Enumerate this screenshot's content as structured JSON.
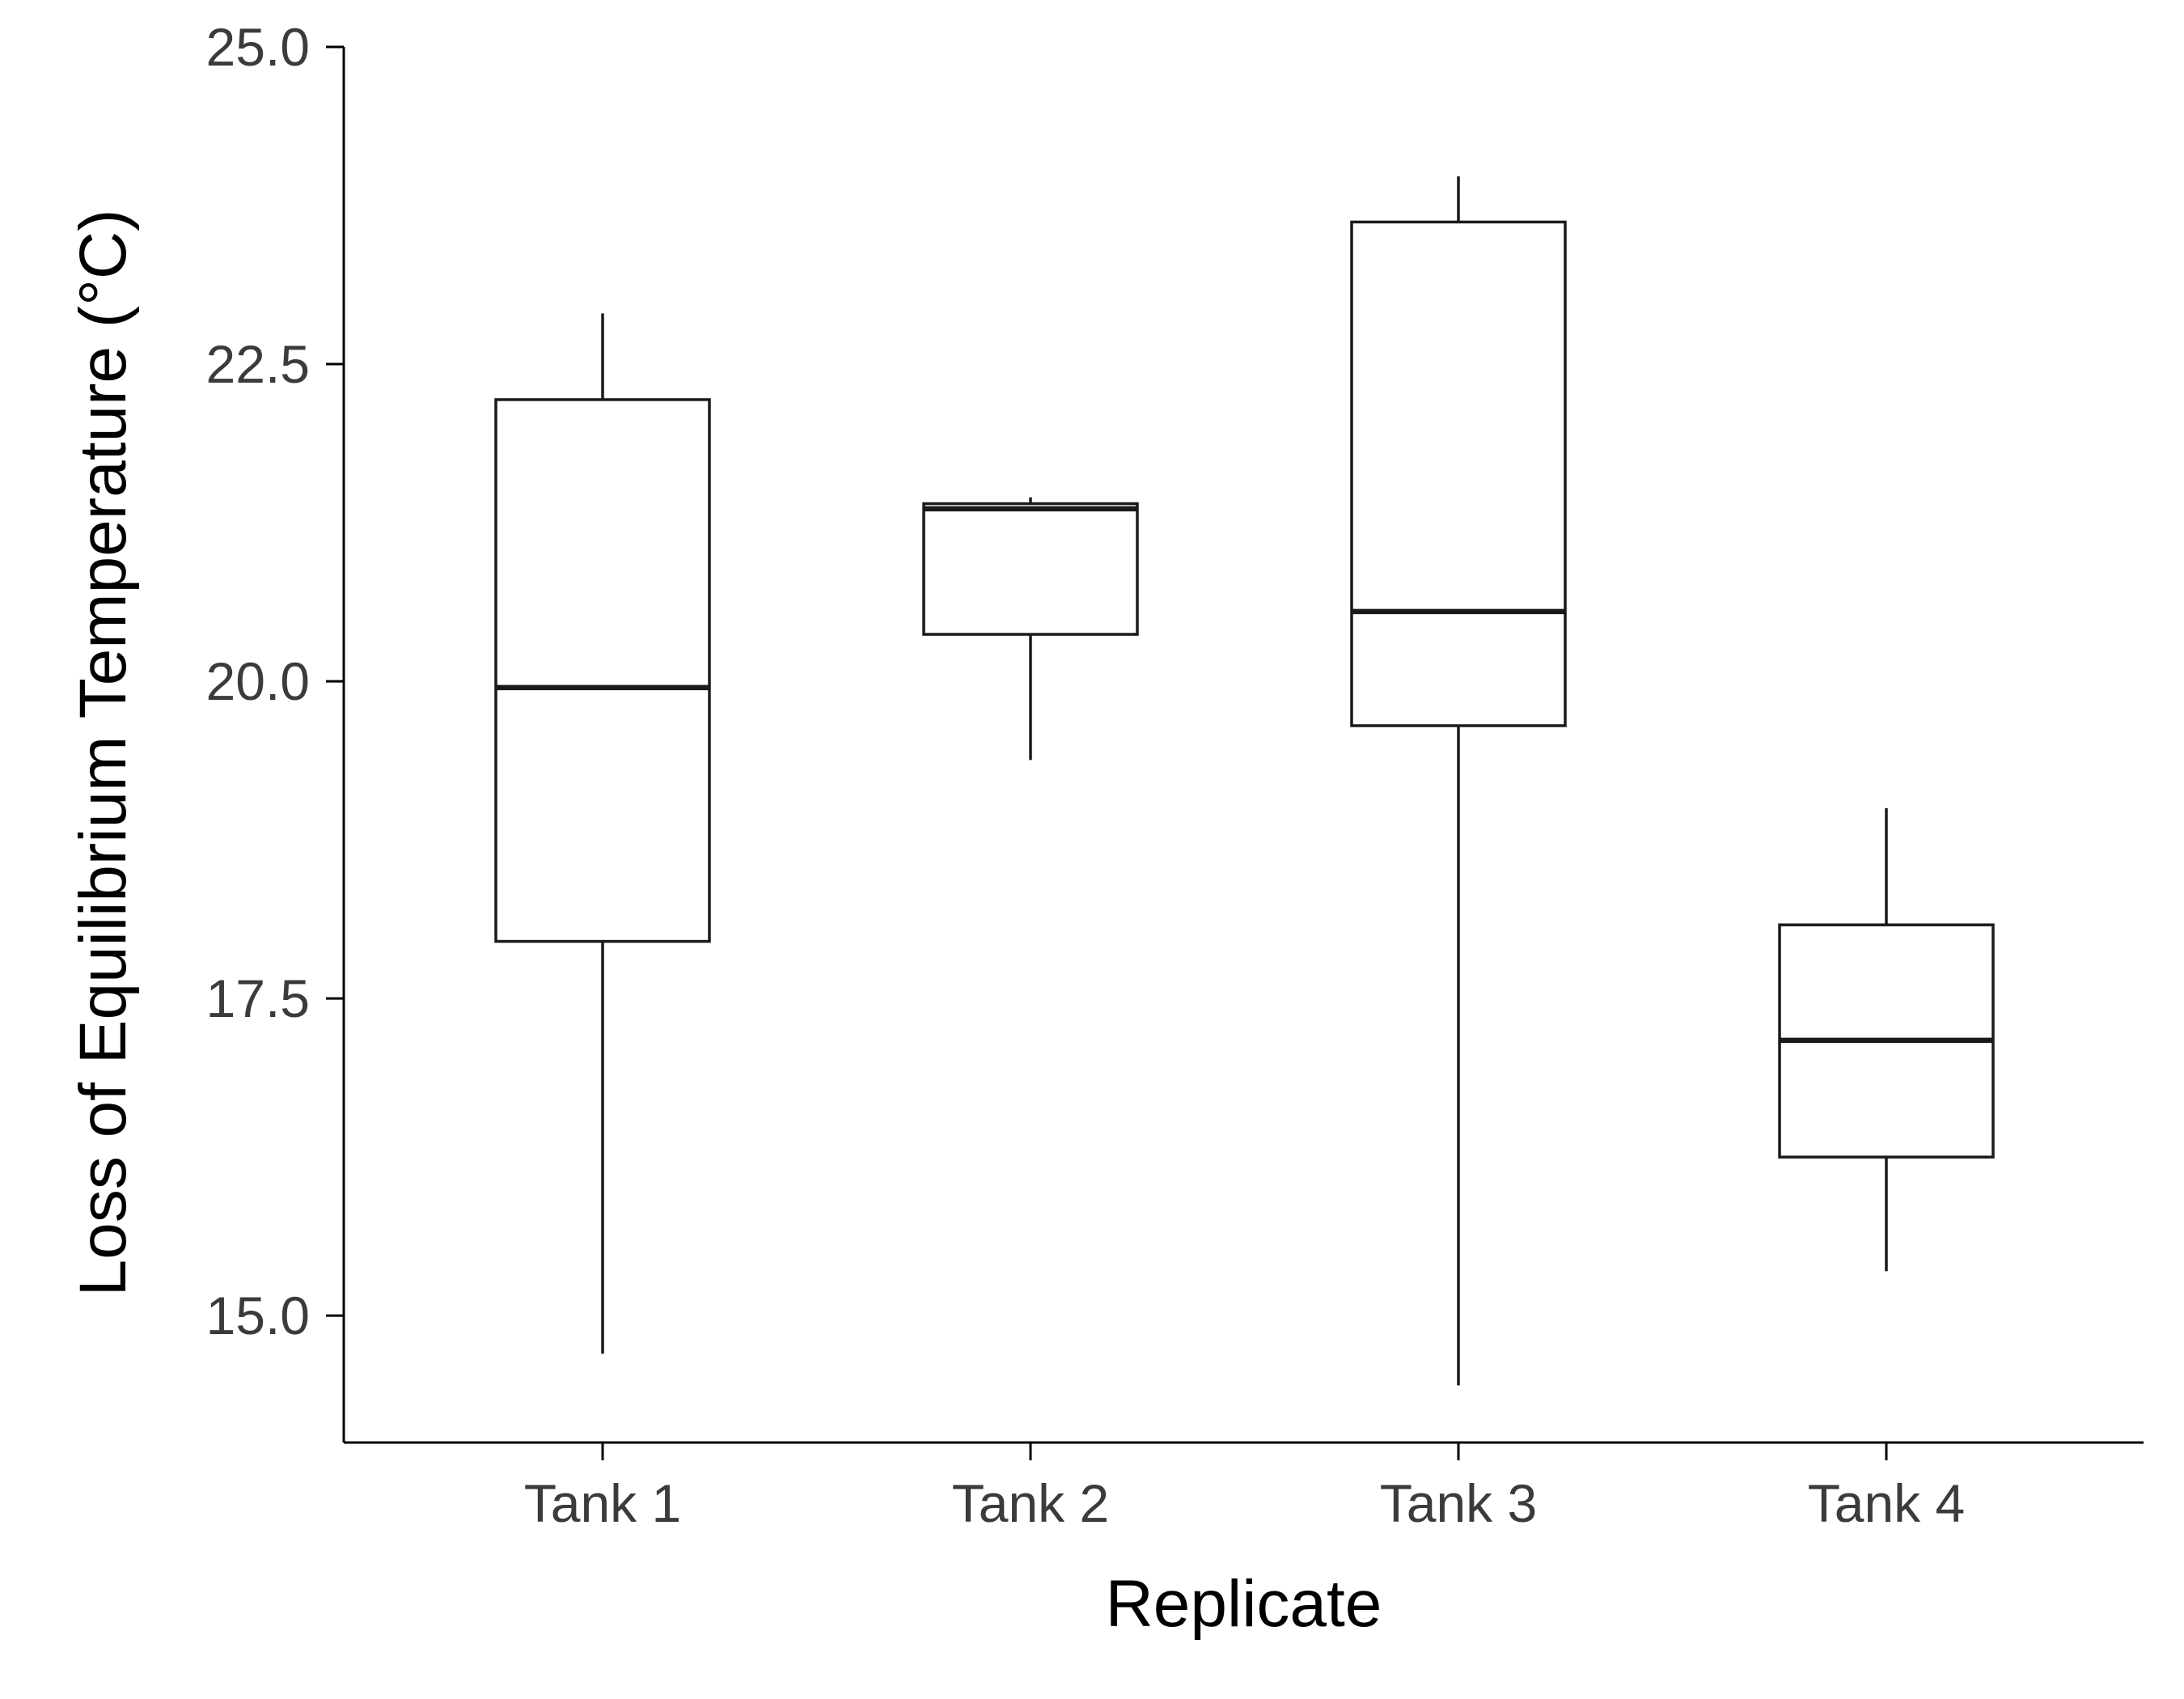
{
  "chart_data": {
    "type": "box",
    "xlabel": "Replicate",
    "ylabel": "Loss of Equilibrium Temperature (°C)",
    "ylim": [
      14.0,
      25.0
    ],
    "yticks": [
      15.0,
      17.5,
      20.0,
      22.5,
      25.0
    ],
    "ytick_labels": [
      "15.0",
      "17.5",
      "20.0",
      "22.5",
      "25.0"
    ],
    "categories": [
      "Tank 1",
      "Tank 2",
      "Tank 3",
      "Tank 4"
    ],
    "boxes": [
      {
        "category": "Tank 1",
        "min": 14.7,
        "q1": 17.95,
        "median": 19.95,
        "q3": 22.22,
        "max": 22.9
      },
      {
        "category": "Tank 2",
        "min": 19.38,
        "q1": 20.37,
        "median": 21.36,
        "q3": 21.4,
        "max": 21.45
      },
      {
        "category": "Tank 3",
        "min": 14.45,
        "q1": 19.65,
        "median": 20.55,
        "q3": 23.62,
        "max": 23.98
      },
      {
        "category": "Tank 4",
        "min": 15.35,
        "q1": 16.25,
        "median": 17.17,
        "q3": 18.08,
        "max": 19.0
      }
    ],
    "grid": false,
    "legend": "none"
  }
}
